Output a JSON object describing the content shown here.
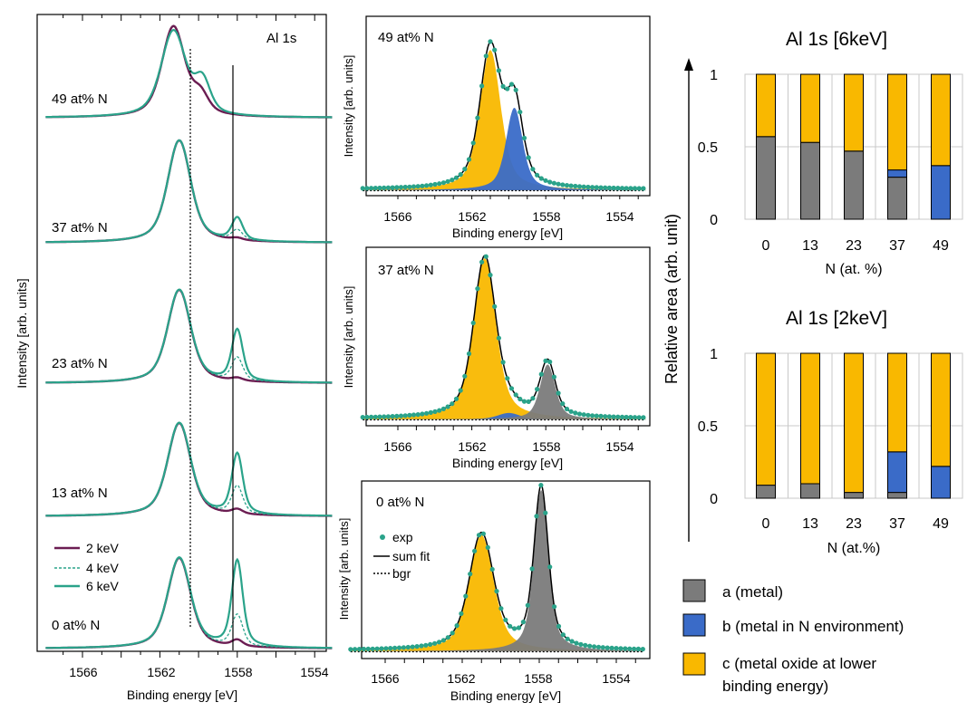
{
  "colors": {
    "purple": "#6b1d52",
    "teal": "#2aa38a",
    "metal": "#7b7b7b",
    "nitride": "#3a6bc8",
    "oxide": "#f9b800",
    "grid": "#c8c8c8"
  },
  "chart_data": [
    {
      "panel": "a",
      "type": "line",
      "title": "Al 1s",
      "xlabel": "Binding energy [eV]",
      "ylabel": "Intensity [arb. units]",
      "xlim": [
        1567.9,
        1553.1
      ],
      "xticks": [
        "1566",
        "1562",
        "1558",
        "1554"
      ],
      "x_reversed": true,
      "reference_lines_eV": [
        1560,
        1558
      ],
      "legend": [
        "2 keV",
        "4 keV",
        "6 keV"
      ],
      "series_names": [
        "2 keV",
        "4 keV",
        "6 keV"
      ],
      "spectra": [
        {
          "label": "49 at% N",
          "metal_peak_eV": 1561.2,
          "oxide_peak_eV": 1561.2,
          "nitride_peak_eV": 1559.6,
          "metal_amp": [
            0,
            0,
            0
          ]
        },
        {
          "label": "37 at% N",
          "metal_peak_eV": 1558.0,
          "oxide_peak_eV": 1561.0,
          "metal_amp": [
            0.02,
            0.1,
            0.22
          ]
        },
        {
          "label": "23 at% N",
          "metal_peak_eV": 1558.0,
          "oxide_peak_eV": 1561.0,
          "metal_amp": [
            0.03,
            0.25,
            0.55
          ]
        },
        {
          "label": "13 at% N",
          "metal_peak_eV": 1558.0,
          "oxide_peak_eV": 1561.0,
          "metal_amp": [
            0.05,
            0.3,
            0.65
          ]
        },
        {
          "label": "0 at% N",
          "metal_peak_eV": 1558.0,
          "oxide_peak_eV": 1561.0,
          "metal_amp": [
            0.07,
            0.35,
            0.95
          ]
        }
      ]
    },
    {
      "panel": "b",
      "type": "line",
      "xlabel": "Binding energy [eV]",
      "ylabel": "Intensity [arb. units]",
      "xlim": [
        1567.9,
        1552.6
      ],
      "xticks": [
        "1566",
        "1562",
        "1558",
        "1554"
      ],
      "legend": [
        "exp",
        "sum fit",
        "bgr"
      ],
      "fits": [
        {
          "label": "49 at% N",
          "components": [
            {
              "name": "c",
              "center_eV": 1561.0,
              "height": 0.85,
              "width": 0.75
            },
            {
              "name": "b",
              "center_eV": 1559.7,
              "height": 0.5,
              "width": 0.6
            }
          ]
        },
        {
          "label": "37 at% N",
          "components": [
            {
              "name": "c",
              "center_eV": 1561.3,
              "height": 1.0,
              "width": 0.8
            },
            {
              "name": "b",
              "center_eV": 1560.0,
              "height": 0.04,
              "width": 0.8
            },
            {
              "name": "a",
              "center_eV": 1557.9,
              "height": 0.34,
              "width": 0.55
            }
          ]
        },
        {
          "label": "0 at% N",
          "components": [
            {
              "name": "c",
              "center_eV": 1561.0,
              "height": 0.72,
              "width": 0.85
            },
            {
              "name": "a",
              "center_eV": 1557.9,
              "height": 1.0,
              "width": 0.5
            }
          ]
        }
      ]
    },
    {
      "panel": "c",
      "type": "bar",
      "stacked": true,
      "title": "Al 1s [6keV]",
      "xlabel": "N (at. %)",
      "ylabel": "Relative area (arb. unit)",
      "categories": [
        "0",
        "13",
        "23",
        "37",
        "49"
      ],
      "ylim": [
        0,
        1
      ],
      "yticks": [
        "0",
        "0.5",
        "1"
      ],
      "series": [
        {
          "name": "a (metal)",
          "values": [
            0.57,
            0.53,
            0.47,
            0.29,
            0.0
          ]
        },
        {
          "name": "b (metal in N environment)",
          "values": [
            0.0,
            0.0,
            0.0,
            0.05,
            0.37
          ]
        },
        {
          "name": "c (metal oxide at lower binding energy)",
          "values": [
            0.43,
            0.47,
            0.53,
            0.66,
            0.63
          ]
        }
      ]
    },
    {
      "panel": "d",
      "type": "bar",
      "stacked": true,
      "title": "Al 1s [2keV]",
      "xlabel": "N (at.%)",
      "ylabel": "Relative area (arb. unit)",
      "categories": [
        "0",
        "13",
        "23",
        "37",
        "49"
      ],
      "ylim": [
        0,
        1
      ],
      "yticks": [
        "0",
        "0.5",
        "1"
      ],
      "series": [
        {
          "name": "a (metal)",
          "values": [
            0.09,
            0.1,
            0.04,
            0.04,
            0.0
          ]
        },
        {
          "name": "b (metal in N environment)",
          "values": [
            0.0,
            0.0,
            0.0,
            0.28,
            0.22
          ]
        },
        {
          "name": "c (metal oxide at lower binding energy)",
          "values": [
            0.91,
            0.9,
            0.96,
            0.68,
            0.78
          ]
        }
      ]
    }
  ],
  "legend": {
    "a": "a (metal)",
    "b": "b (metal in N environment)",
    "c_line1": "c (metal oxide at lower",
    "c_line2": "binding energy)"
  }
}
